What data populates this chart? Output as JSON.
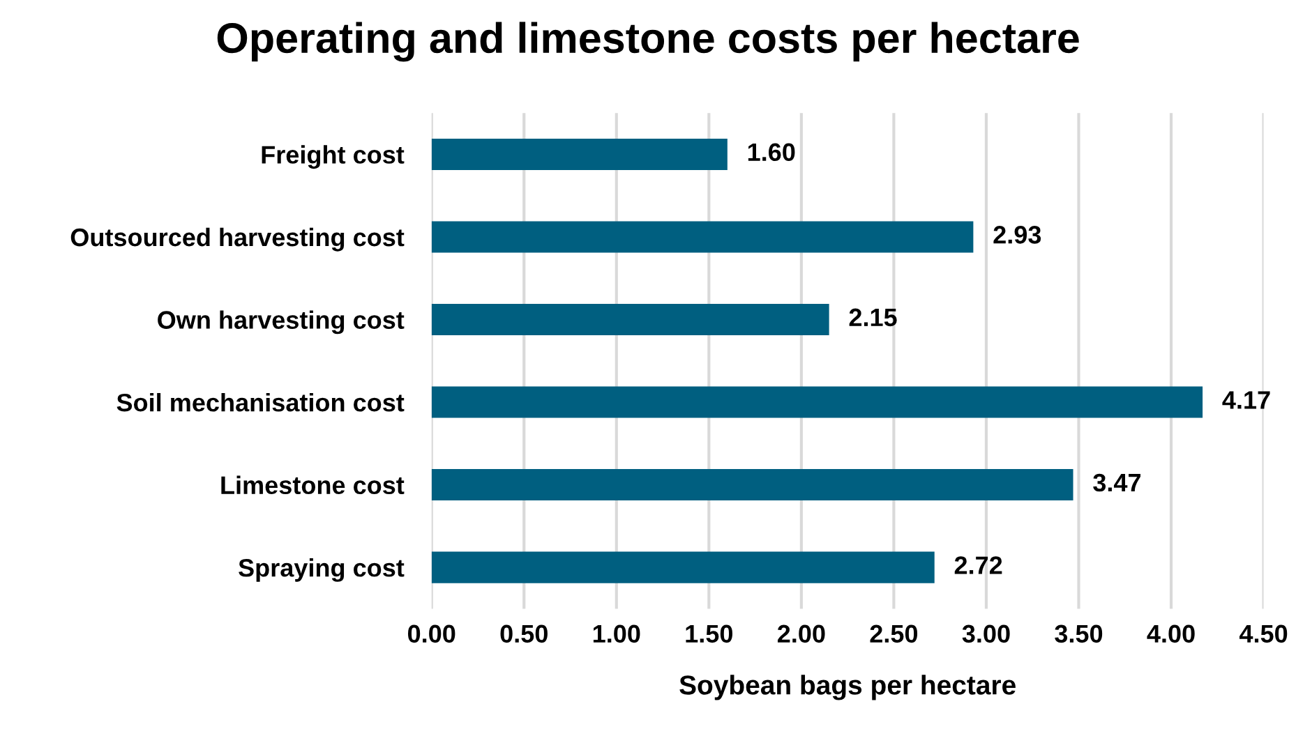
{
  "chart_data": {
    "type": "bar",
    "orientation": "horizontal",
    "title": "Operating and limestone costs per hectare",
    "xlabel": "Soybean bags per hectare",
    "categories": [
      "Freight cost",
      "Outsourced harvesting cost",
      "Own harvesting cost",
      "Soil mechanisation cost",
      "Limestone cost",
      "Spraying cost"
    ],
    "values": [
      1.6,
      2.93,
      2.15,
      4.17,
      3.47,
      2.72
    ],
    "value_labels": [
      "1.60",
      "2.93",
      "2.15",
      "4.17",
      "3.47",
      "2.72"
    ],
    "color": "#005f80",
    "xlim": [
      0,
      4.5
    ],
    "xticks": [
      {
        "value": 0,
        "label": "0.00"
      },
      {
        "value": 0.5,
        "label": "0.50"
      },
      {
        "value": 1,
        "label": "1.00"
      },
      {
        "value": 1.5,
        "label": "1.50"
      },
      {
        "value": 2,
        "label": "2.00"
      },
      {
        "value": 2.5,
        "label": "2.50"
      },
      {
        "value": 3,
        "label": "3.00"
      },
      {
        "value": 3.5,
        "label": "3.50"
      },
      {
        "value": 4,
        "label": "4.00"
      },
      {
        "value": 4.5,
        "label": "4.50"
      }
    ],
    "grid": "x",
    "legend": false
  }
}
